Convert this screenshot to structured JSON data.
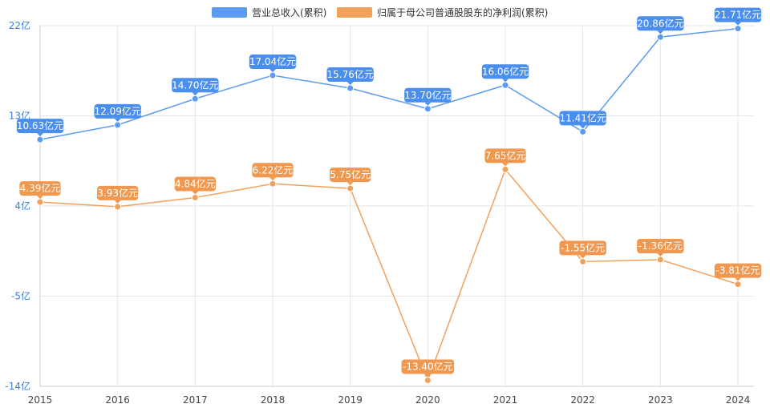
{
  "chart_data": {
    "type": "line",
    "categories": [
      "2015",
      "2016",
      "2017",
      "2018",
      "2019",
      "2020",
      "2021",
      "2022",
      "2023",
      "2024"
    ],
    "y_ticks": [
      "22亿",
      "13亿",
      "4亿",
      "-5亿",
      "-14亿"
    ],
    "ylim": [
      -14,
      22
    ],
    "grid": true,
    "legend_position": "top-center",
    "series": [
      {
        "name": "营业总收入(累积)",
        "color": "#5b9bf0",
        "label_color": "#4a8eee",
        "values": [
          10.63,
          12.09,
          14.7,
          17.04,
          15.76,
          13.7,
          16.06,
          11.41,
          20.86,
          21.71
        ],
        "labels": [
          "10.63亿元",
          "12.09亿元",
          "14.70亿元",
          "17.04亿元",
          "15.76亿元",
          "13.70亿元",
          "16.06亿元",
          "11.41亿元",
          "20.86亿元",
          "21.71亿元"
        ]
      },
      {
        "name": "归属于母公司普通股股东的净利润(累积)",
        "color": "#f2a15c",
        "label_color": "#f0984f",
        "values": [
          4.39,
          3.93,
          4.84,
          6.22,
          5.75,
          -13.4,
          7.65,
          -1.55,
          -1.36,
          -3.81
        ],
        "labels": [
          "4.39亿元",
          "3.93亿元",
          "4.84亿元",
          "6.22亿元",
          "5.75亿元",
          "-13.40亿元",
          "7.65亿元",
          "-1.55亿元",
          "-1.36亿元",
          "-3.81亿元"
        ]
      }
    ],
    "axis_color": "#3b7fd6",
    "grid_color": "#e6e6e6"
  }
}
